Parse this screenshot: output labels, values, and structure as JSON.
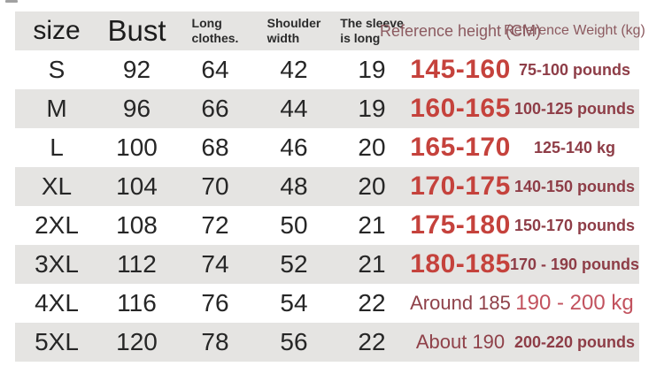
{
  "chart_data": {
    "type": "table",
    "title": "Garment size chart",
    "columns": [
      "size",
      "Bust",
      "Long clothes.",
      "Shoulder width",
      "The sleeve is long",
      "Reference height (CM)",
      "Reference Weight (kg)"
    ],
    "rows": [
      [
        "S",
        92,
        64,
        42,
        19,
        "145-160",
        "75-100 pounds"
      ],
      [
        "M",
        96,
        66,
        44,
        19,
        "160-165",
        "100-125 pounds"
      ],
      [
        "L",
        100,
        68,
        46,
        20,
        "165-170",
        "125-140 kg"
      ],
      [
        "XL",
        104,
        70,
        48,
        20,
        "170-175",
        "140-150 pounds"
      ],
      [
        "2XL",
        108,
        72,
        50,
        21,
        "175-180",
        "150-170 pounds"
      ],
      [
        "3XL",
        112,
        74,
        52,
        21,
        "180-185",
        "170 - 190 pounds"
      ],
      [
        "4XL",
        116,
        76,
        54,
        22,
        "Around 185",
        "190 - 200 kg"
      ],
      [
        "5XL",
        120,
        78,
        56,
        22,
        "About 190",
        "200-220 pounds"
      ]
    ],
    "layout": {
      "striped": true,
      "stripe_color": "#e5e4e2",
      "grid": false
    }
  },
  "header": {
    "size": "size",
    "bust": "Bust",
    "long": {
      "line1": "Long",
      "line2": "clothes."
    },
    "shoulder": {
      "line1": "Shoulder",
      "line2": "width"
    },
    "sleeve": {
      "line1": "The sleeve",
      "line2": "is long"
    },
    "height": "Reference height (CM)",
    "weight": "Reference Weight (kg)"
  },
  "rows": [
    {
      "size": "S",
      "bust": "92",
      "long": "64",
      "shoulder": "42",
      "sleeve": "19",
      "height": "145-160",
      "weight": "75-100 pounds"
    },
    {
      "size": "M",
      "bust": "96",
      "long": "66",
      "shoulder": "44",
      "sleeve": "19",
      "height": "160-165",
      "weight": "100-125 pounds"
    },
    {
      "size": "L",
      "bust": "100",
      "long": "68",
      "shoulder": "46",
      "sleeve": "20",
      "height": "165-170",
      "weight": "125-140 kg"
    },
    {
      "size": "XL",
      "bust": "104",
      "long": "70",
      "shoulder": "48",
      "sleeve": "20",
      "height": "170-175",
      "weight": "140-150 pounds"
    },
    {
      "size": "2XL",
      "bust": "108",
      "long": "72",
      "shoulder": "50",
      "sleeve": "21",
      "height": "175-180",
      "weight": "150-170 pounds"
    },
    {
      "size": "3XL",
      "bust": "112",
      "long": "74",
      "shoulder": "52",
      "sleeve": "21",
      "height": "180-185",
      "weight": "170 - 190 pounds"
    },
    {
      "size": "4XL",
      "bust": "116",
      "long": "76",
      "shoulder": "54",
      "sleeve": "22",
      "height": "Around 185",
      "weight": "190 - 200 kg"
    },
    {
      "size": "5XL",
      "bust": "120",
      "long": "78",
      "shoulder": "56",
      "sleeve": "22",
      "height": "About 190",
      "weight": "200-220 pounds"
    }
  ],
  "colors": {
    "stripe_gray": "#e5e4e2",
    "black_text": "#262626",
    "height_red": "#c5423c",
    "height_approx_maroon": "#8f4149",
    "weight_maroon": "#8e3d47",
    "weight_kg_red": "#c2525e",
    "header_maroon": "#8c5a60"
  }
}
